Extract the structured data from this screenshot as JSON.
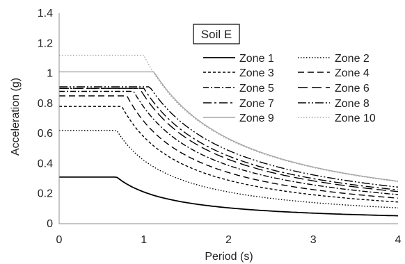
{
  "chart_data": {
    "type": "line",
    "title": "",
    "annotation": "Soil E",
    "xlabel": "Period (s)",
    "ylabel": "Acceleration (g)",
    "xlim": [
      0,
      4
    ],
    "ylim": [
      0,
      1.4
    ],
    "xticks": [
      0,
      1,
      2,
      3,
      4
    ],
    "yticks": [
      0,
      0.2,
      0.4,
      0.6,
      0.8,
      1,
      1.2,
      1.4
    ],
    "xtick_labels": [
      "0",
      "1",
      "2",
      "3",
      "4"
    ],
    "ytick_labels": [
      "0",
      "0.2",
      "0.4",
      "0.6",
      "0.8",
      "1",
      "1.2",
      "1.4"
    ],
    "grid": {
      "x": false,
      "y": false
    },
    "legend_position": "right",
    "series": [
      {
        "name": "Zone 1",
        "color": "#000000",
        "dash": "solid",
        "plateau": 0.31,
        "corner_period": 0.68,
        "points": [
          [
            0,
            0.31
          ],
          [
            0.68,
            0.31
          ],
          [
            1,
            0.211
          ],
          [
            1.5,
            0.141
          ],
          [
            2,
            0.105
          ],
          [
            2.5,
            0.084
          ],
          [
            3,
            0.07
          ],
          [
            3.5,
            0.06
          ],
          [
            4,
            0.053
          ]
        ]
      },
      {
        "name": "Zone 2",
        "color": "#000000",
        "dash": "dot",
        "plateau": 0.62,
        "corner_period": 0.68,
        "points": [
          [
            0,
            0.62
          ],
          [
            0.68,
            0.62
          ],
          [
            1,
            0.422
          ],
          [
            1.5,
            0.281
          ],
          [
            2,
            0.211
          ],
          [
            2.5,
            0.169
          ],
          [
            3,
            0.141
          ],
          [
            3.5,
            0.12
          ],
          [
            4,
            0.105
          ]
        ]
      },
      {
        "name": "Zone 3",
        "color": "#000000",
        "dash": "short-dash",
        "plateau": 0.78,
        "corner_period": 0.74,
        "points": [
          [
            0,
            0.78
          ],
          [
            0.74,
            0.78
          ],
          [
            1,
            0.577
          ],
          [
            1.5,
            0.385
          ],
          [
            2,
            0.289
          ],
          [
            2.5,
            0.231
          ],
          [
            3,
            0.192
          ],
          [
            3.5,
            0.165
          ],
          [
            4,
            0.144
          ]
        ]
      },
      {
        "name": "Zone 4",
        "color": "#000000",
        "dash": "long-dash",
        "plateau": 0.85,
        "corner_period": 0.8,
        "points": [
          [
            0,
            0.85
          ],
          [
            0.8,
            0.85
          ],
          [
            1,
            0.68
          ],
          [
            1.5,
            0.453
          ],
          [
            2,
            0.34
          ],
          [
            2.5,
            0.272
          ],
          [
            3,
            0.227
          ],
          [
            3.5,
            0.194
          ],
          [
            4,
            0.17
          ]
        ]
      },
      {
        "name": "Zone 5",
        "color": "#000000",
        "dash": "dash-dot",
        "plateau": 0.88,
        "corner_period": 0.88,
        "points": [
          [
            0,
            0.88
          ],
          [
            0.88,
            0.88
          ],
          [
            1,
            0.774
          ],
          [
            1.5,
            0.516
          ],
          [
            2,
            0.387
          ],
          [
            2.5,
            0.31
          ],
          [
            3,
            0.258
          ],
          [
            3.5,
            0.221
          ],
          [
            4,
            0.194
          ]
        ]
      },
      {
        "name": "Zone 6",
        "color": "#000000",
        "dash": "long-dash-gap",
        "plateau": 0.9,
        "corner_period": 0.95,
        "points": [
          [
            0,
            0.9
          ],
          [
            0.95,
            0.9
          ],
          [
            1,
            0.855
          ],
          [
            1.5,
            0.57
          ],
          [
            2,
            0.428
          ],
          [
            2.5,
            0.342
          ],
          [
            3,
            0.285
          ],
          [
            3.5,
            0.244
          ],
          [
            4,
            0.214
          ]
        ]
      },
      {
        "name": "Zone 7",
        "color": "#000000",
        "dash": "long-dash-dot",
        "plateau": 0.9,
        "corner_period": 1.0,
        "points": [
          [
            0,
            0.9
          ],
          [
            1,
            0.9
          ],
          [
            1.5,
            0.6
          ],
          [
            2,
            0.45
          ],
          [
            2.5,
            0.36
          ],
          [
            3,
            0.3
          ],
          [
            3.5,
            0.257
          ],
          [
            4,
            0.225
          ]
        ]
      },
      {
        "name": "Zone 8",
        "color": "#000000",
        "dash": "long-dash-dot-dot",
        "plateau": 0.91,
        "corner_period": 1.07,
        "points": [
          [
            0,
            0.91
          ],
          [
            1.07,
            0.91
          ],
          [
            1.5,
            0.649
          ],
          [
            2,
            0.487
          ],
          [
            2.5,
            0.389
          ],
          [
            3,
            0.325
          ],
          [
            3.5,
            0.278
          ],
          [
            4,
            0.243
          ]
        ]
      },
      {
        "name": "Zone 9",
        "color": "#a6a6a6",
        "dash": "solid",
        "plateau": 1.01,
        "corner_period": 1.12,
        "points": [
          [
            0,
            1.01
          ],
          [
            1.12,
            1.01
          ],
          [
            1.5,
            0.754
          ],
          [
            2,
            0.566
          ],
          [
            2.5,
            0.452
          ],
          [
            3,
            0.377
          ],
          [
            3.5,
            0.323
          ],
          [
            4,
            0.283
          ]
        ]
      },
      {
        "name": "Zone 10",
        "color": "#a6a6a6",
        "dash": "dot",
        "plateau": 1.12,
        "corner_period": 1.0,
        "points": [
          [
            0,
            1.12
          ],
          [
            1,
            1.12
          ],
          [
            1.5,
            0.747
          ],
          [
            2,
            0.56
          ],
          [
            2.5,
            0.448
          ],
          [
            3,
            0.373
          ],
          [
            3.5,
            0.32
          ],
          [
            4,
            0.28
          ]
        ]
      }
    ]
  }
}
